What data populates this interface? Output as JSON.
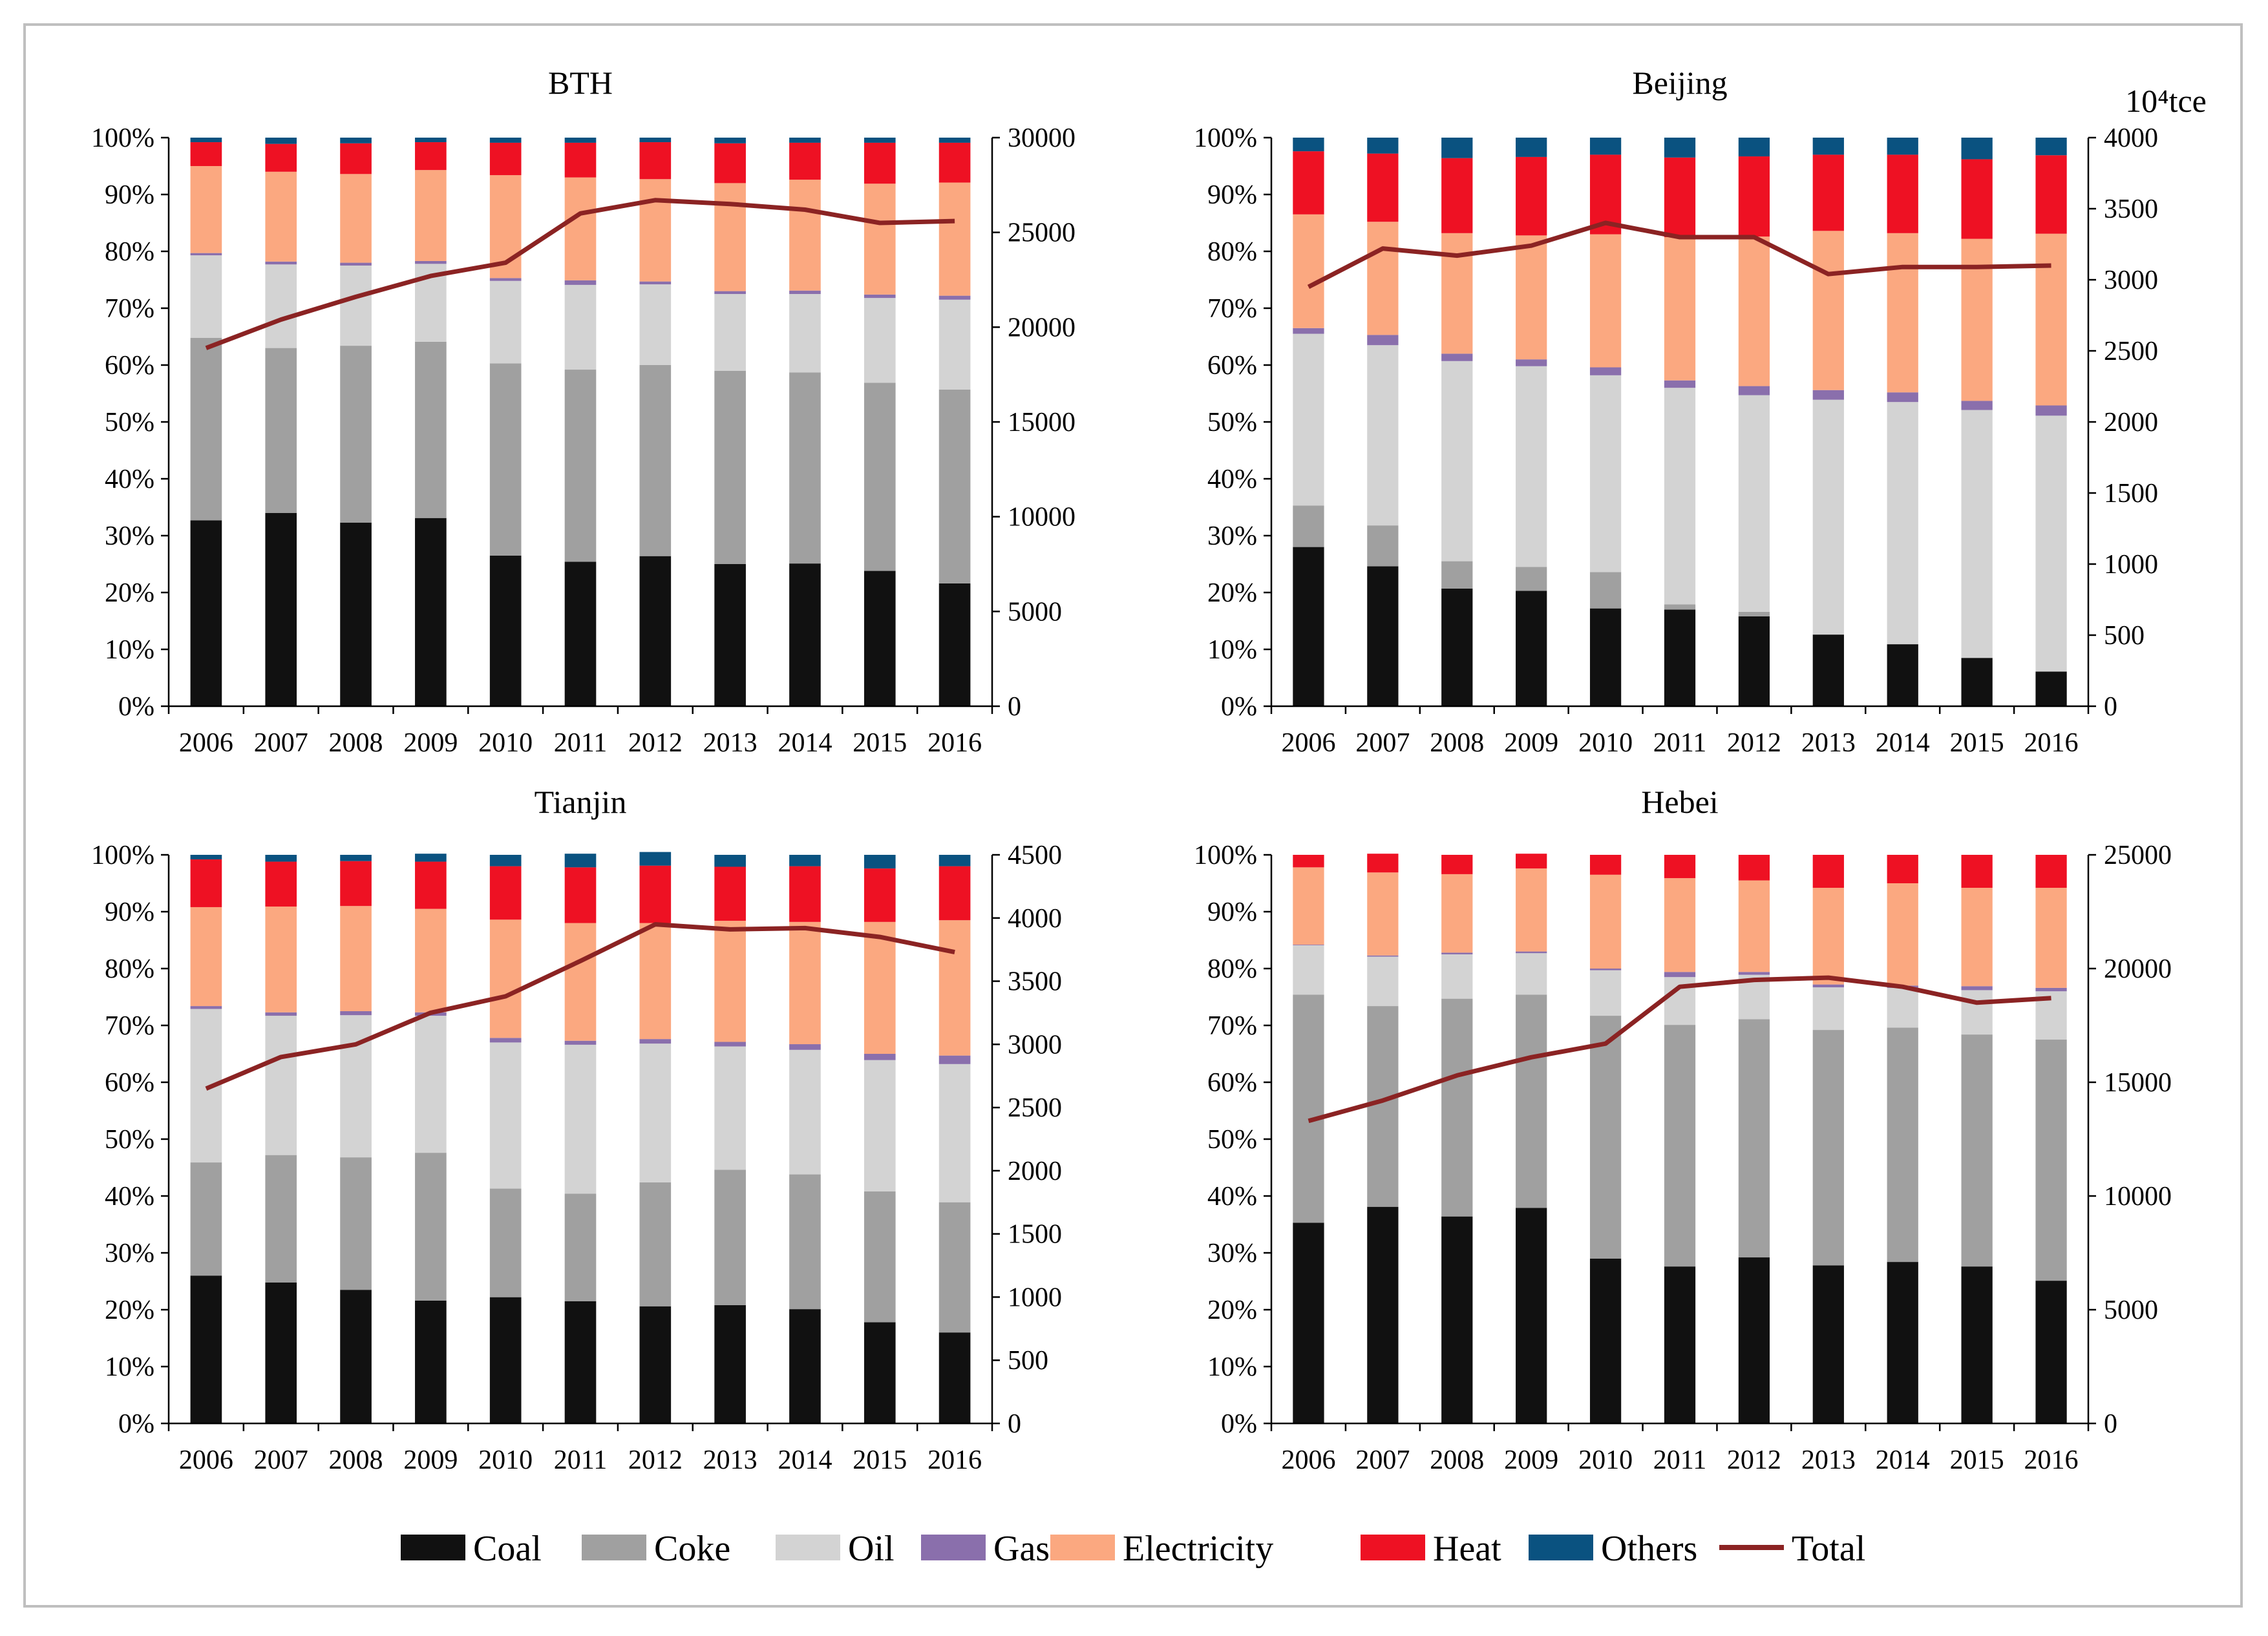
{
  "chart_data": [
    {
      "type": "bar",
      "subtype": "stacked-percent-with-line",
      "title": "BTH",
      "categories": [
        "2006",
        "2007",
        "2008",
        "2009",
        "2010",
        "2011",
        "2012",
        "2013",
        "2014",
        "2015",
        "2016"
      ],
      "series": [
        {
          "name": "Coal",
          "values": [
            32.7,
            34.0,
            32.3,
            33.1,
            26.5,
            25.4,
            26.4,
            25.0,
            25.1,
            23.8,
            21.6
          ]
        },
        {
          "name": "Coke",
          "values": [
            32.1,
            29.0,
            31.1,
            31.0,
            33.8,
            33.8,
            33.6,
            34.0,
            33.6,
            33.1,
            34.1
          ]
        },
        {
          "name": "Oil",
          "values": [
            14.5,
            14.7,
            14.1,
            13.7,
            14.5,
            14.9,
            14.2,
            13.5,
            13.8,
            14.9,
            15.8
          ]
        },
        {
          "name": "Gas",
          "values": [
            0.4,
            0.5,
            0.5,
            0.5,
            0.5,
            0.8,
            0.5,
            0.5,
            0.6,
            0.6,
            0.7
          ]
        },
        {
          "name": "Electricity",
          "values": [
            15.3,
            15.8,
            15.6,
            16.0,
            18.1,
            18.1,
            18.0,
            19.0,
            19.5,
            19.5,
            19.9
          ]
        },
        {
          "name": "Heat",
          "values": [
            4.2,
            4.9,
            5.4,
            4.9,
            5.7,
            6.1,
            6.5,
            7.0,
            6.5,
            7.2,
            7.0
          ]
        },
        {
          "name": "Others",
          "values": [
            0.8,
            1.1,
            1.0,
            0.8,
            0.9,
            0.9,
            0.8,
            1.0,
            0.9,
            0.9,
            0.9
          ]
        }
      ],
      "total": {
        "name": "Total",
        "values": [
          18900,
          20400,
          21600,
          22700,
          23400,
          26000,
          26700,
          26500,
          26200,
          25500,
          25600
        ]
      },
      "ylim": [
        0,
        100
      ],
      "y_ticks": [
        "0%",
        "10%",
        "20%",
        "30%",
        "40%",
        "50%",
        "60%",
        "70%",
        "80%",
        "90%",
        "100%"
      ],
      "y2lim": [
        0,
        30000
      ],
      "y2_ticks": [
        "0",
        "5000",
        "10000",
        "15000",
        "20000",
        "25000",
        "30000"
      ],
      "y2_unit": ""
    },
    {
      "type": "bar",
      "subtype": "stacked-percent-with-line",
      "title": "Beijing",
      "categories": [
        "2006",
        "2007",
        "2008",
        "2009",
        "2010",
        "2011",
        "2012",
        "2013",
        "2014",
        "2015",
        "2016"
      ],
      "series": [
        {
          "name": "Coal",
          "values": [
            28.0,
            24.6,
            20.7,
            20.3,
            17.2,
            17.0,
            15.8,
            12.6,
            10.9,
            8.5,
            6.1
          ]
        },
        {
          "name": "Coke",
          "values": [
            7.3,
            7.2,
            4.8,
            4.2,
            6.4,
            0.9,
            0.8,
            0,
            0,
            0,
            0
          ]
        },
        {
          "name": "Oil",
          "values": [
            30.2,
            31.7,
            35.2,
            35.3,
            34.6,
            38.1,
            38.1,
            41.3,
            42.6,
            43.6,
            45.0
          ]
        },
        {
          "name": "Gas",
          "values": [
            1.0,
            1.8,
            1.3,
            1.2,
            1.4,
            1.3,
            1.6,
            1.7,
            1.7,
            1.6,
            1.8
          ]
        },
        {
          "name": "Electricity",
          "values": [
            20.0,
            19.9,
            21.2,
            21.8,
            23.4,
            25.2,
            26.3,
            28.0,
            28.0,
            28.5,
            30.2
          ]
        },
        {
          "name": "Heat",
          "values": [
            11.1,
            12.0,
            13.2,
            13.8,
            14.0,
            14.0,
            14.1,
            13.4,
            13.8,
            14.0,
            13.8
          ]
        },
        {
          "name": "Others",
          "values": [
            2.4,
            2.8,
            3.6,
            3.4,
            3.0,
            3.5,
            3.3,
            3.0,
            3.0,
            3.8,
            3.1
          ]
        }
      ],
      "total": {
        "name": "Total",
        "values": [
          2950,
          3220,
          3170,
          3240,
          3400,
          3300,
          3300,
          3040,
          3090,
          3090,
          3100
        ]
      },
      "ylim": [
        0,
        100
      ],
      "y_ticks": [
        "0%",
        "10%",
        "20%",
        "30%",
        "40%",
        "50%",
        "60%",
        "70%",
        "80%",
        "90%",
        "100%"
      ],
      "y2lim": [
        0,
        4000
      ],
      "y2_ticks": [
        "0",
        "500",
        "1000",
        "1500",
        "2000",
        "2500",
        "3000",
        "3500",
        "4000"
      ],
      "y2_unit": "10⁴tce"
    },
    {
      "type": "bar",
      "subtype": "stacked-percent-with-line",
      "title": "Tianjin",
      "categories": [
        "2006",
        "2007",
        "2008",
        "2009",
        "2010",
        "2011",
        "2012",
        "2013",
        "2014",
        "2015",
        "2016"
      ],
      "series": [
        {
          "name": "Coal",
          "values": [
            26.0,
            24.8,
            23.5,
            21.6,
            22.2,
            21.5,
            20.6,
            20.8,
            20.1,
            17.8,
            16.0
          ]
        },
        {
          "name": "Coke",
          "values": [
            19.9,
            22.4,
            23.3,
            26.0,
            19.1,
            18.9,
            21.8,
            23.8,
            23.7,
            23.0,
            22.9
          ]
        },
        {
          "name": "Oil",
          "values": [
            27.0,
            24.5,
            25.0,
            24.1,
            25.7,
            26.2,
            24.4,
            21.7,
            21.9,
            23.1,
            24.3
          ]
        },
        {
          "name": "Gas",
          "values": [
            0.5,
            0.6,
            0.7,
            0.6,
            0.8,
            0.7,
            0.8,
            0.8,
            1.0,
            1.1,
            1.5
          ]
        },
        {
          "name": "Electricity",
          "values": [
            17.4,
            18.6,
            18.5,
            18.2,
            20.8,
            20.7,
            20.4,
            21.3,
            21.5,
            23.2,
            23.8
          ]
        },
        {
          "name": "Heat",
          "values": [
            8.4,
            7.9,
            7.9,
            8.3,
            9.4,
            9.8,
            10.1,
            9.5,
            9.8,
            9.4,
            9.5
          ]
        },
        {
          "name": "Others",
          "values": [
            0.8,
            1.2,
            1.1,
            1.4,
            2.0,
            2.4,
            2.4,
            2.1,
            2.0,
            2.4,
            2.0
          ]
        }
      ],
      "total": {
        "name": "Total",
        "values": [
          2650,
          2900,
          3000,
          3250,
          3380,
          3660,
          3950,
          3910,
          3920,
          3850,
          3730
        ]
      },
      "ylim": [
        0,
        100
      ],
      "y_ticks": [
        "0%",
        "10%",
        "20%",
        "30%",
        "40%",
        "50%",
        "60%",
        "70%",
        "80%",
        "90%",
        "100%"
      ],
      "y2lim": [
        0,
        4500
      ],
      "y2_ticks": [
        "0",
        "500",
        "1000",
        "1500",
        "2000",
        "2500",
        "3000",
        "3500",
        "4000",
        "4500"
      ],
      "y2_unit": ""
    },
    {
      "type": "bar",
      "subtype": "stacked-percent-with-line",
      "title": "Hebei",
      "categories": [
        "2006",
        "2007",
        "2008",
        "2009",
        "2010",
        "2011",
        "2012",
        "2013",
        "2014",
        "2015",
        "2016"
      ],
      "series": [
        {
          "name": "Coal",
          "values": [
            35.3,
            38.1,
            36.4,
            37.9,
            29.0,
            27.6,
            29.2,
            27.8,
            28.4,
            27.6,
            25.1
          ]
        },
        {
          "name": "Coke",
          "values": [
            40.1,
            35.3,
            38.3,
            37.5,
            42.7,
            42.5,
            41.9,
            41.4,
            41.2,
            40.8,
            42.4
          ]
        },
        {
          "name": "Oil",
          "values": [
            8.7,
            8.7,
            7.8,
            7.3,
            8.0,
            8.4,
            7.8,
            7.5,
            7.0,
            7.8,
            8.5
          ]
        },
        {
          "name": "Gas",
          "values": [
            0.1,
            0.2,
            0.3,
            0.3,
            0.3,
            0.9,
            0.5,
            0.5,
            0.4,
            0.7,
            0.6
          ]
        },
        {
          "name": "Electricity",
          "values": [
            13.6,
            14.6,
            13.8,
            14.6,
            16.5,
            16.5,
            16.1,
            17.0,
            18.0,
            17.3,
            17.6
          ]
        },
        {
          "name": "Heat",
          "values": [
            2.2,
            3.3,
            3.4,
            2.6,
            3.5,
            4.1,
            4.5,
            5.8,
            5.0,
            5.8,
            5.8
          ]
        },
        {
          "name": "Others",
          "values": [
            0,
            0,
            0,
            0,
            0,
            0,
            0,
            0,
            0,
            0,
            0
          ]
        }
      ],
      "total": {
        "name": "Total",
        "values": [
          13300,
          14200,
          15300,
          16100,
          16700,
          19200,
          19500,
          19600,
          19200,
          18500,
          18700
        ]
      },
      "ylim": [
        0,
        100
      ],
      "y_ticks": [
        "0%",
        "10%",
        "20%",
        "30%",
        "40%",
        "50%",
        "60%",
        "70%",
        "80%",
        "90%",
        "100%"
      ],
      "y2lim": [
        0,
        25000
      ],
      "y2_ticks": [
        "0",
        "5000",
        "10000",
        "15000",
        "20000",
        "25000"
      ],
      "y2_unit": ""
    }
  ],
  "legend": {
    "items": [
      {
        "name": "Coal",
        "color": "#111111",
        "kind": "box"
      },
      {
        "name": "Coke",
        "color": "#a0a0a0",
        "kind": "box"
      },
      {
        "name": "Oil",
        "color": "#d3d3d3",
        "kind": "box"
      },
      {
        "name": "Gas",
        "color": "#8a6fac",
        "kind": "box"
      },
      {
        "name": "Electricity",
        "color": "#fba880",
        "kind": "box"
      },
      {
        "name": "Heat",
        "color": "#ee1123",
        "kind": "box"
      },
      {
        "name": "Others",
        "color": "#0a5280",
        "kind": "box"
      },
      {
        "name": "Total",
        "color": "#8b2323",
        "kind": "line"
      }
    ]
  },
  "colors": {
    "Coal": "#111111",
    "Coke": "#a0a0a0",
    "Oil": "#d3d3d3",
    "Gas": "#8a6fac",
    "Electricity": "#fba880",
    "Heat": "#ee1123",
    "Others": "#0a5280",
    "Total": "#8b2323"
  }
}
